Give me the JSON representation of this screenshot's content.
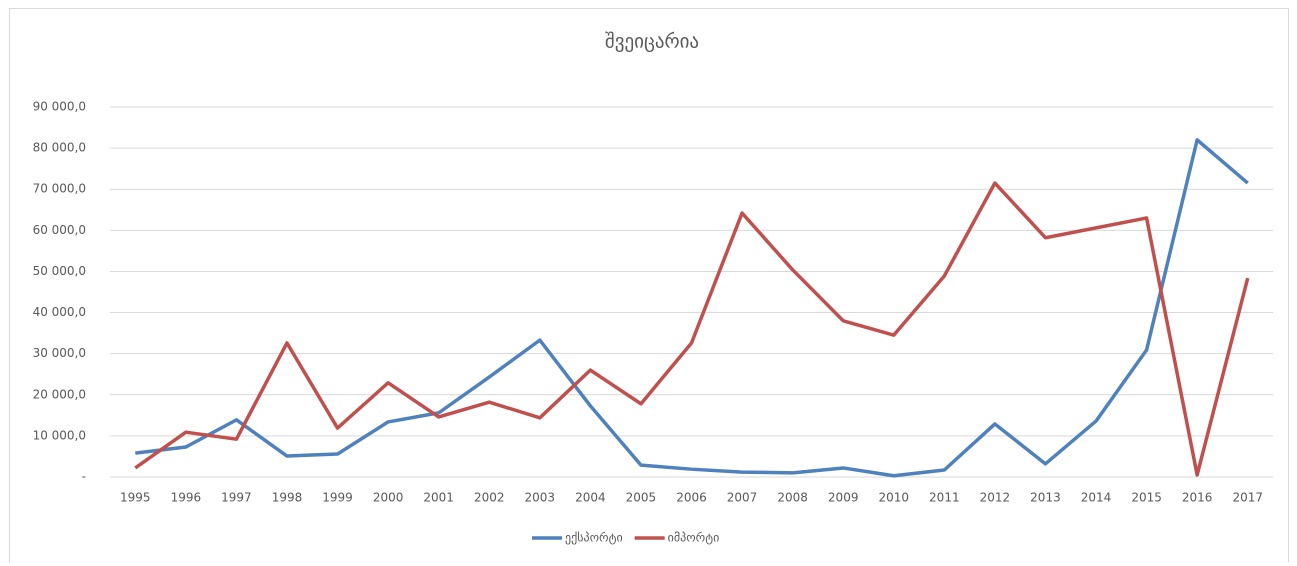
{
  "chart_data": {
    "type": "line",
    "title": "შვეიცარია",
    "categories": [
      "1995",
      "1996",
      "1997",
      "1998",
      "1999",
      "2000",
      "2001",
      "2002",
      "2003",
      "2004",
      "2005",
      "2006",
      "2007",
      "2008",
      "2009",
      "2010",
      "2011",
      "2012",
      "2013",
      "2014",
      "2015",
      "2016",
      "2017"
    ],
    "series": [
      {
        "name": "ექსპორტი",
        "color": "#4f81bd",
        "values": [
          5800,
          7300,
          13900,
          5100,
          5600,
          13400,
          15600,
          24300,
          33300,
          17300,
          2900,
          1900,
          1200,
          1000,
          2200,
          300,
          1700,
          12900,
          3200,
          13600,
          30900,
          82000,
          71500
        ]
      },
      {
        "name": "იმპორტი",
        "color": "#c0504d",
        "values": [
          2200,
          10900,
          9200,
          32600,
          11900,
          22900,
          14600,
          18200,
          14400,
          26000,
          17800,
          32600,
          64200,
          50400,
          38000,
          34500,
          48900,
          71500,
          58200,
          60600,
          63000,
          500,
          48400
        ]
      }
    ],
    "ylim": [
      0,
      90000
    ],
    "yticks": [
      {
        "value": 0,
        "label": "-"
      },
      {
        "value": 10000,
        "label": "10 000,0"
      },
      {
        "value": 20000,
        "label": "20 000,0"
      },
      {
        "value": 30000,
        "label": "30 000,0"
      },
      {
        "value": 40000,
        "label": "40 000,0"
      },
      {
        "value": 50000,
        "label": "50 000,0"
      },
      {
        "value": 60000,
        "label": "60 000,0"
      },
      {
        "value": 70000,
        "label": "70 000,0"
      },
      {
        "value": 80000,
        "label": "80 000,0"
      },
      {
        "value": 90000,
        "label": "90 000,0"
      }
    ],
    "grid": true,
    "legend": "bottom"
  }
}
